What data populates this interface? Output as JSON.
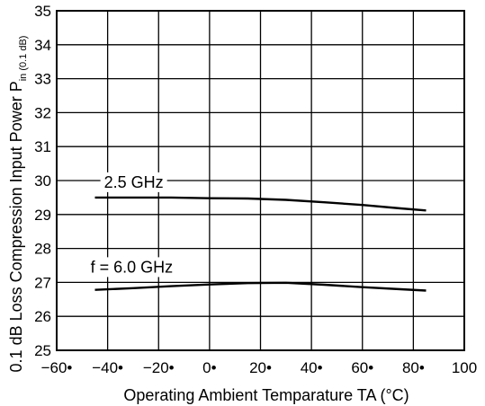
{
  "chart_data": {
    "type": "line",
    "title": "",
    "xlabel": "Operating Ambient Temparature  TA (°C)",
    "ylabel": "0.1 dB Loss Compression Input Power  Pin (0.1 dB)",
    "ylabel_main": "0.1 dB Loss Compression Input Power  P",
    "ylabel_sub": "in (0.1 dB)",
    "xlim": [
      -60,
      100
    ],
    "ylim": [
      25,
      35
    ],
    "x_ticks": [
      -60,
      -40,
      -20,
      0,
      20,
      40,
      60,
      80,
      100
    ],
    "x_tick_labels": [
      "−60•",
      "−40•",
      "−20•",
      "0•",
      "20•",
      "40•",
      "60•",
      "80•",
      "100"
    ],
    "y_ticks": [
      25,
      26,
      27,
      28,
      29,
      30,
      31,
      32,
      33,
      34,
      35
    ],
    "y_tick_labels": [
      "25",
      "26",
      "27",
      "28",
      "29",
      "30",
      "31",
      "32",
      "33",
      "34",
      "35"
    ],
    "grid": true,
    "series": [
      {
        "name": "2.5 GHz",
        "x": [
          -45,
          -30,
          -15,
          0,
          15,
          30,
          45,
          60,
          75,
          85
        ],
        "y": [
          29.5,
          29.5,
          29.5,
          29.48,
          29.47,
          29.43,
          29.36,
          29.28,
          29.18,
          29.12
        ]
      },
      {
        "name": "f = 6.0 GHz",
        "x": [
          -45,
          -30,
          -15,
          0,
          15,
          30,
          45,
          60,
          75,
          85
        ],
        "y": [
          26.78,
          26.83,
          26.89,
          26.94,
          26.98,
          26.99,
          26.93,
          26.86,
          26.8,
          26.76
        ]
      }
    ]
  }
}
